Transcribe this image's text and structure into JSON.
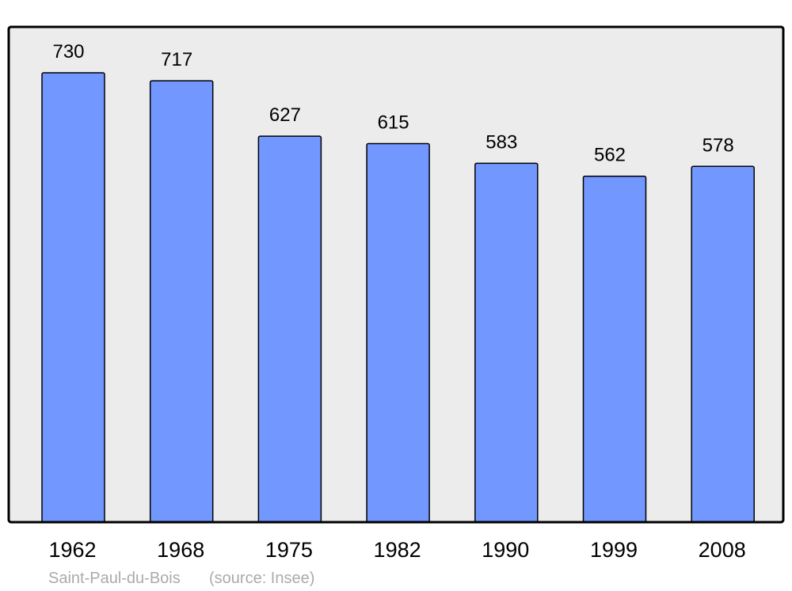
{
  "chart_data": {
    "type": "bar",
    "categories": [
      "1962",
      "1968",
      "1975",
      "1982",
      "1990",
      "1999",
      "2008"
    ],
    "values": [
      730,
      717,
      627,
      615,
      583,
      562,
      578
    ],
    "title": "",
    "xlabel": "",
    "ylabel": "",
    "grid": false,
    "data_labels": true,
    "colors": {
      "bar": "#7298ff",
      "plot_background": "#ececec",
      "outline": "#000000",
      "footer_text": "#aaaaaa"
    }
  },
  "footer": {
    "place": "Saint-Paul-du-Bois",
    "source": "(source: Insee)"
  }
}
